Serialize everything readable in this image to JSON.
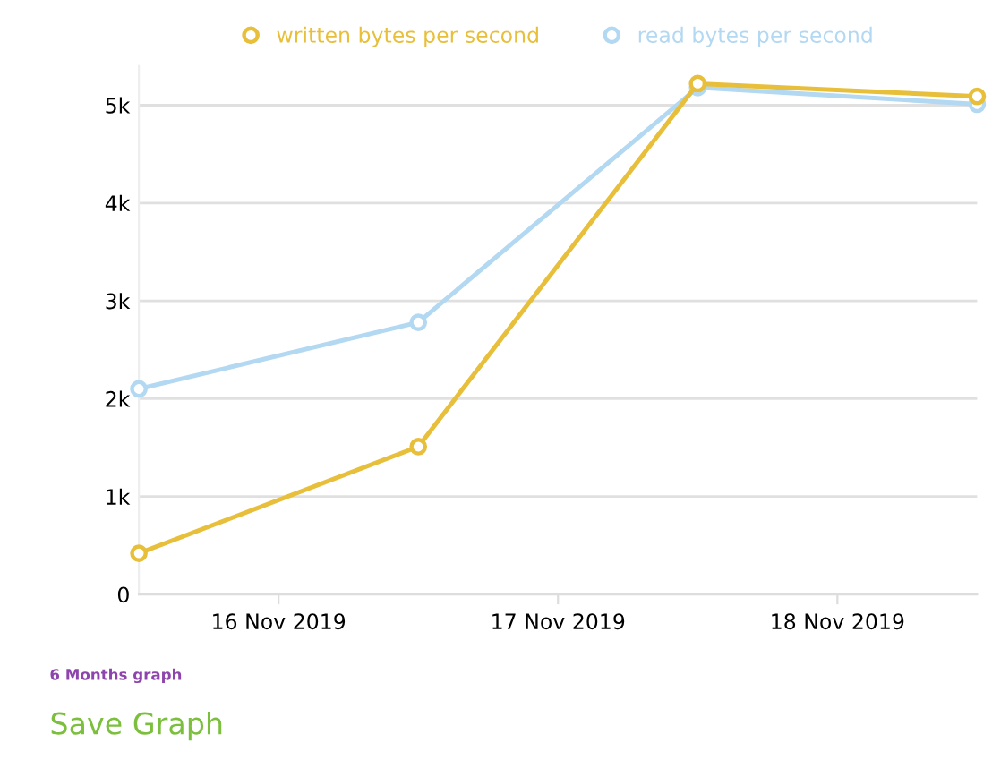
{
  "chart_data": {
    "type": "line",
    "x": [
      "2019-11-15T12:00",
      "2019-11-16T12:00",
      "2019-11-17T12:00",
      "2019-11-18T12:00"
    ],
    "series": [
      {
        "name": "written bytes per second",
        "color": "#e8bf3a",
        "values": [
          420,
          1510,
          5220,
          5090
        ]
      },
      {
        "name": "read bytes per second",
        "color": "#b3d8f2",
        "values": [
          2100,
          2780,
          5180,
          5010
        ]
      }
    ],
    "xlim": [
      "2019-11-15T12:00",
      "2019-11-18T12:00"
    ],
    "xticks": [
      {
        "value": "2019-11-16",
        "label": "16 Nov 2019"
      },
      {
        "value": "2019-11-17",
        "label": "17 Nov 2019"
      },
      {
        "value": "2019-11-18",
        "label": "18 Nov 2019"
      }
    ],
    "ylim": [
      0,
      5400
    ],
    "yticks": [
      0,
      {
        "value": 1000,
        "label": "1k"
      },
      {
        "value": 2000,
        "label": "2k"
      },
      {
        "value": 3000,
        "label": "3k"
      },
      {
        "value": 4000,
        "label": "4k"
      },
      {
        "value": 5000,
        "label": "5k"
      }
    ],
    "grid": "y",
    "legend": "top",
    "marker": "circle",
    "line_style": "solid",
    "annotations": [
      "6 Months graph",
      "Save Graph"
    ]
  }
}
